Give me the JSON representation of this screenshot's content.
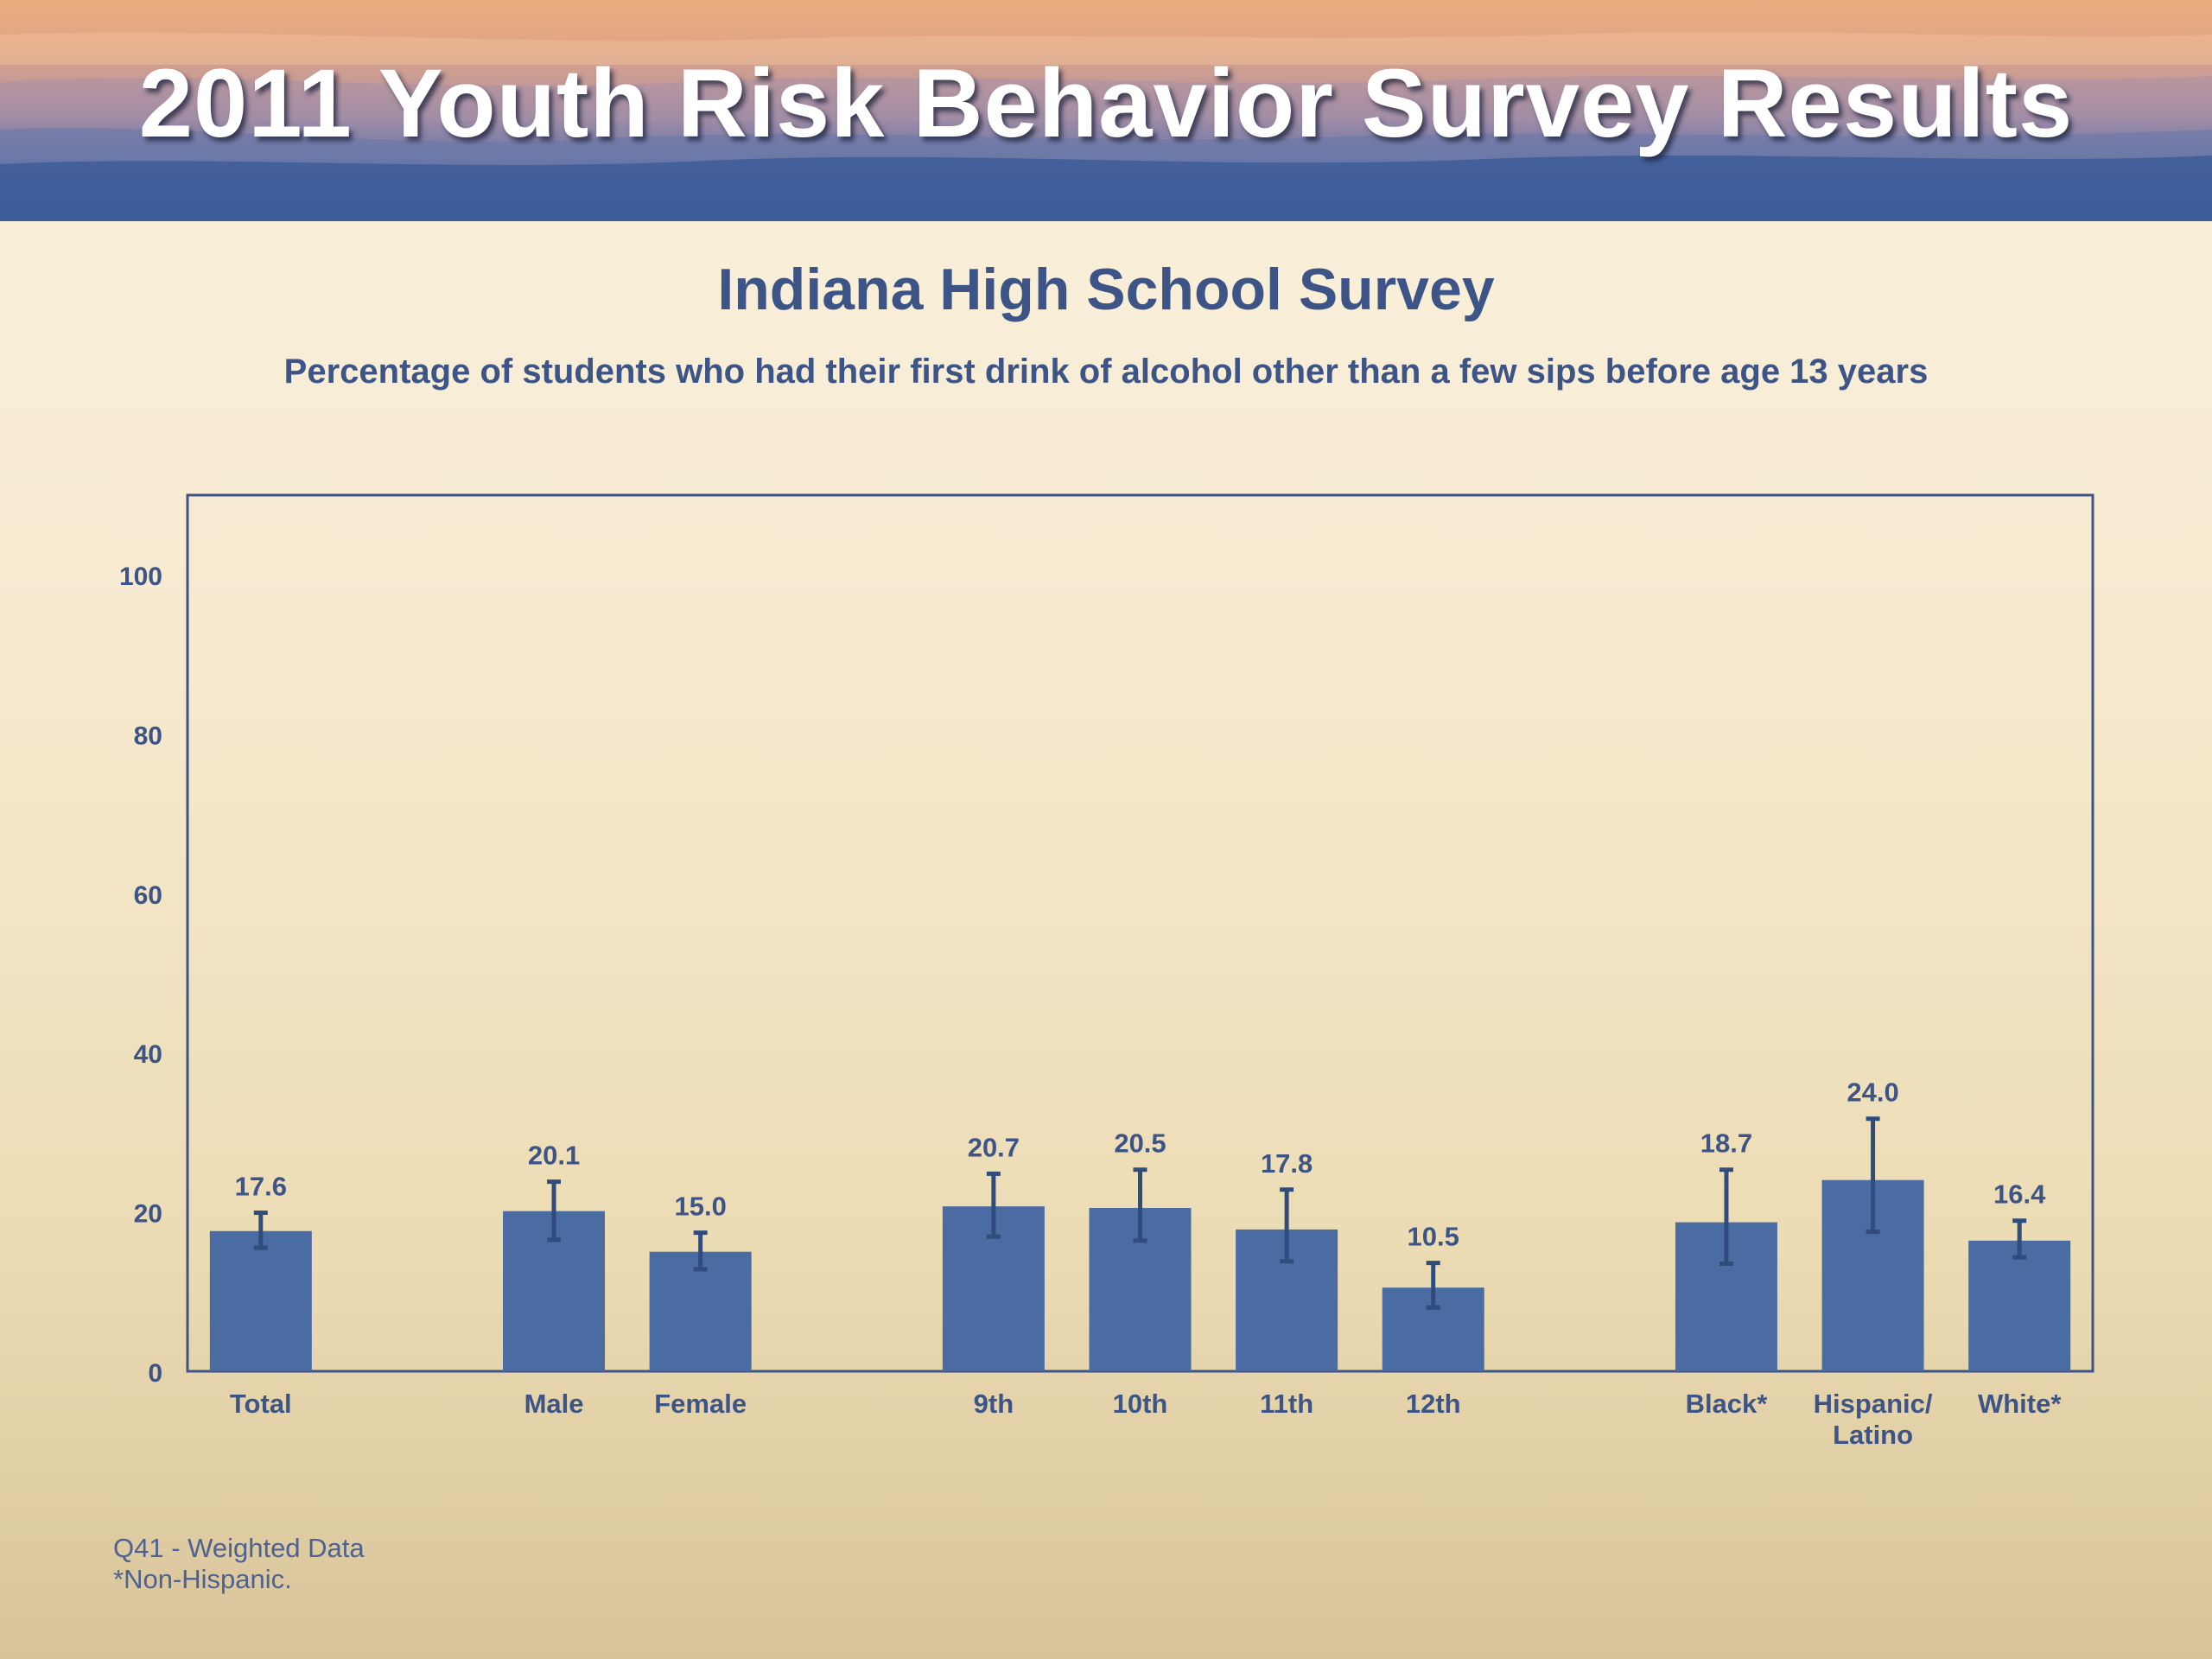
{
  "header": {
    "banner_title": "2011 Youth Risk Behavior Survey Results"
  },
  "colors": {
    "bar": "#4b6ca3",
    "error_bar": "#2f4c7c",
    "text": "#3d5486",
    "frame": "#3d5486"
  },
  "chart_data": {
    "type": "bar",
    "title": "Indiana High School Survey",
    "subtitle": "Percentage of students who had their first drink of alcohol other than a few sips before age 13 years",
    "xlabel": "",
    "ylabel": "",
    "ylim": [
      0,
      110
    ],
    "yticks": [
      0,
      20,
      40,
      60,
      80,
      100
    ],
    "grid": false,
    "categories": [
      "Total",
      "Male",
      "Female",
      "9th",
      "10th",
      "11th",
      "12th",
      "Black*",
      "Hispanic/\nLatino",
      "White*"
    ],
    "groups": [
      [
        "Total"
      ],
      [
        "Male",
        "Female"
      ],
      [
        "9th",
        "10th",
        "11th",
        "12th"
      ],
      [
        "Black*",
        "Hispanic/\nLatino",
        "White*"
      ]
    ],
    "values": [
      17.6,
      20.1,
      15.0,
      20.7,
      20.5,
      17.8,
      10.5,
      18.7,
      24.0,
      16.4
    ],
    "value_labels": [
      "17.6",
      "20.1",
      "15.0",
      "20.7",
      "20.5",
      "17.8",
      "10.5",
      "18.7",
      "24.0",
      "16.4"
    ],
    "error_low": [
      15.5,
      16.5,
      12.8,
      16.9,
      16.4,
      13.8,
      8.0,
      13.5,
      17.5,
      14.3
    ],
    "error_high": [
      19.9,
      23.8,
      17.4,
      24.8,
      25.3,
      22.8,
      13.6,
      25.3,
      31.7,
      18.9
    ]
  },
  "footnotes": {
    "line1": "Q41 - Weighted Data",
    "line2": "*Non-Hispanic."
  }
}
